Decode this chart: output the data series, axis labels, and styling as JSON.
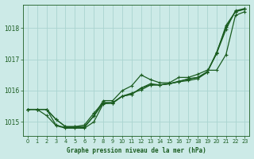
{
  "background_color": "#cceae7",
  "grid_color": "#aad4d0",
  "line_color": "#1a5c20",
  "title": "Graphe pression niveau de la mer (hPa)",
  "xlim": [
    -0.5,
    23.5
  ],
  "ylim": [
    1014.55,
    1018.75
  ],
  "yticks": [
    1015,
    1016,
    1017,
    1018
  ],
  "xticks": [
    0,
    1,
    2,
    3,
    4,
    5,
    6,
    7,
    8,
    9,
    10,
    11,
    12,
    13,
    14,
    15,
    16,
    17,
    18,
    19,
    20,
    21,
    22,
    23
  ],
  "line1_x": [
    0,
    1,
    2,
    3,
    4,
    5,
    6,
    7,
    8,
    9,
    10,
    11,
    12,
    13,
    14,
    15,
    16,
    17,
    18,
    19,
    20,
    21,
    22,
    23
  ],
  "line1_y": [
    1015.4,
    1015.4,
    1015.4,
    1014.9,
    1014.82,
    1014.82,
    1014.82,
    1015.2,
    1015.68,
    1015.68,
    1016.0,
    1016.15,
    1016.5,
    1016.35,
    1016.25,
    1016.25,
    1016.42,
    1016.42,
    1016.52,
    1016.65,
    1016.65,
    1017.15,
    1018.4,
    1018.52
  ],
  "line2_x": [
    0,
    1,
    2,
    3,
    4,
    5,
    6,
    7,
    8,
    9,
    10,
    11,
    12,
    13,
    14,
    15,
    16,
    17,
    18,
    19,
    20,
    21,
    22,
    23
  ],
  "line2_y": [
    1015.4,
    1015.4,
    1015.2,
    1014.88,
    1014.8,
    1014.8,
    1014.8,
    1015.0,
    1015.58,
    1015.6,
    1015.82,
    1015.88,
    1016.08,
    1016.18,
    1016.18,
    1016.22,
    1016.28,
    1016.32,
    1016.38,
    1016.58,
    1017.18,
    1018.08,
    1018.52,
    1018.6
  ],
  "line3_x": [
    0,
    1,
    2,
    3,
    4,
    5,
    6,
    7,
    8,
    9,
    10,
    11,
    12,
    13,
    14,
    15,
    16,
    17,
    18,
    19,
    20,
    21,
    22,
    23
  ],
  "line3_y": [
    1015.4,
    1015.4,
    1015.4,
    1015.08,
    1014.85,
    1014.85,
    1014.9,
    1015.28,
    1015.62,
    1015.62,
    1015.82,
    1015.88,
    1016.08,
    1016.22,
    1016.18,
    1016.22,
    1016.28,
    1016.38,
    1016.42,
    1016.58,
    1017.22,
    1018.02,
    1018.52,
    1018.6
  ],
  "line4_x": [
    0,
    1,
    2,
    3,
    4,
    5,
    6,
    7,
    8,
    9,
    10,
    11,
    12,
    13,
    14,
    15,
    16,
    17,
    18,
    19,
    20,
    21,
    22,
    23
  ],
  "line4_y": [
    1015.4,
    1015.4,
    1015.4,
    1015.08,
    1014.85,
    1014.85,
    1014.85,
    1015.18,
    1015.6,
    1015.6,
    1015.82,
    1015.92,
    1016.02,
    1016.18,
    1016.18,
    1016.22,
    1016.3,
    1016.36,
    1016.42,
    1016.6,
    1017.18,
    1017.95,
    1018.55,
    1018.62
  ]
}
